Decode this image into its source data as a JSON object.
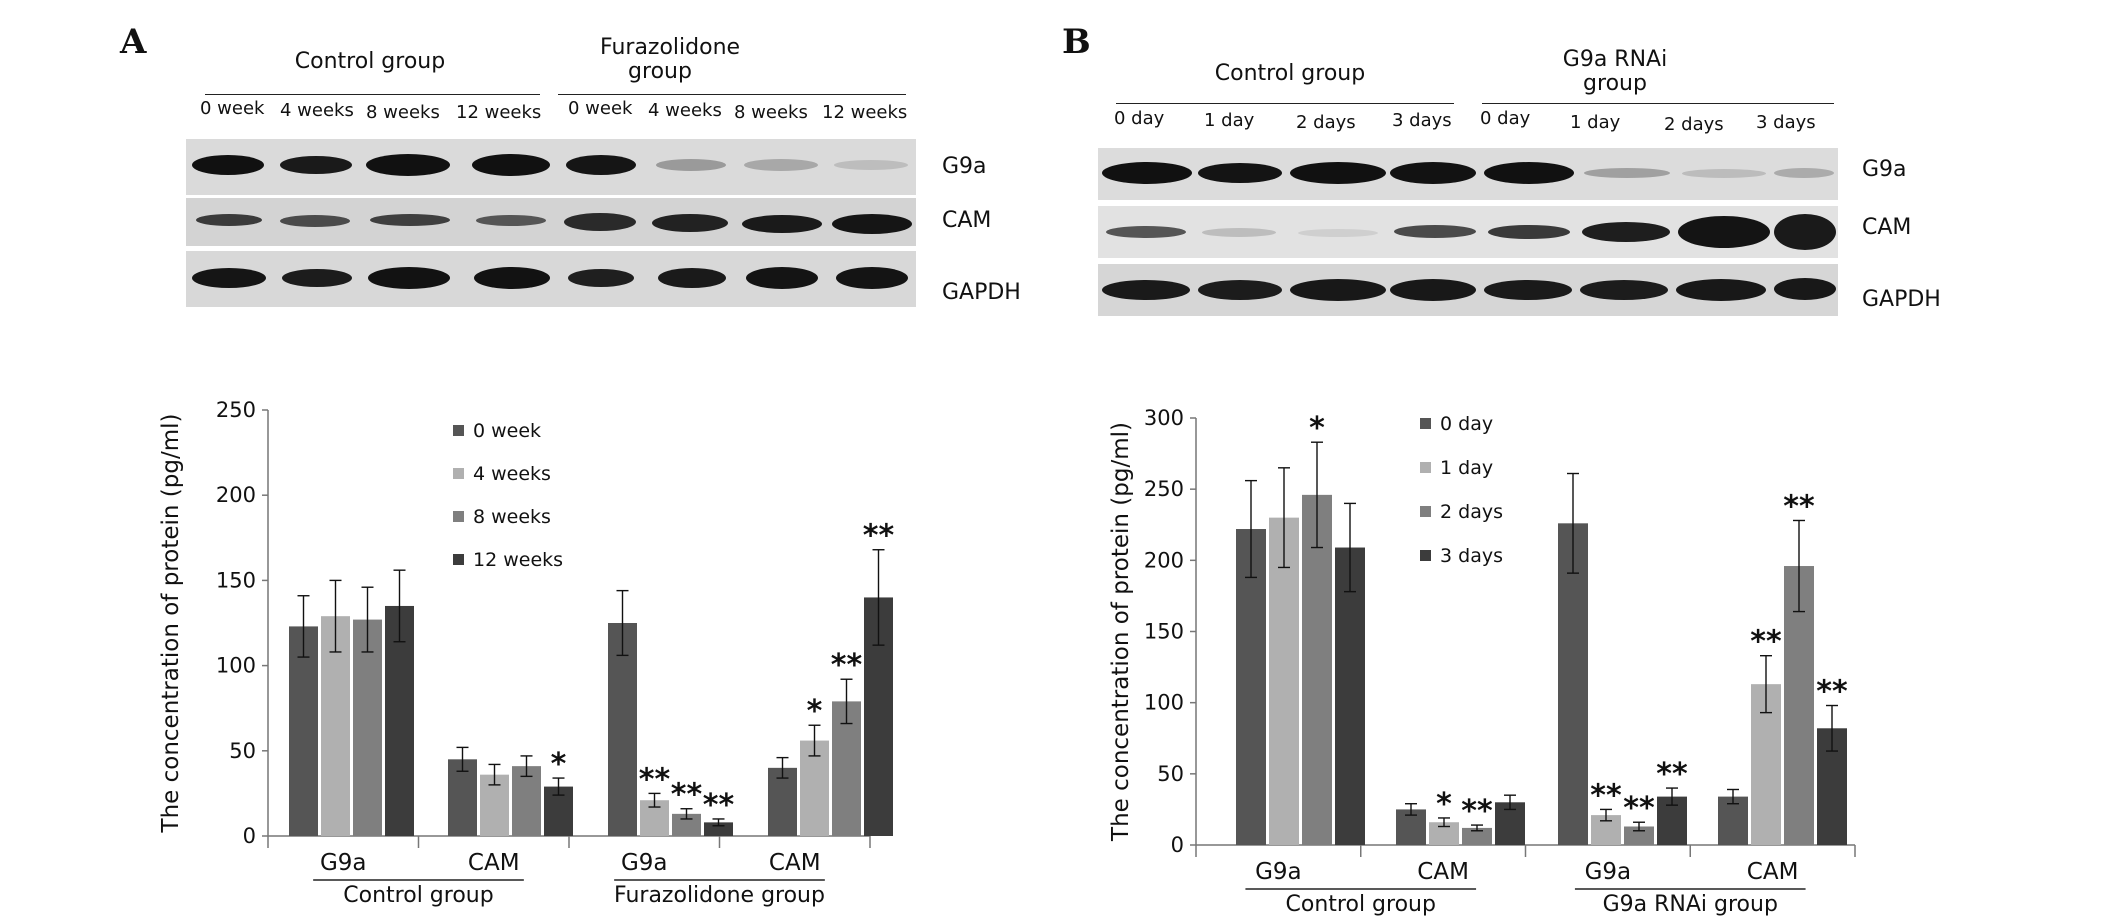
{
  "panels": [
    {
      "letter": "A",
      "blot": {
        "groups": [
          "Control group",
          "Furazolidone group"
        ],
        "lanes": [
          "0 week",
          "4 weeks",
          "8 weeks",
          "12 weeks",
          "0 week",
          "4 weeks",
          "8 weeks",
          "12 weeks"
        ],
        "proteins": [
          "G9a",
          "CAM",
          "GAPDH"
        ]
      }
    },
    {
      "letter": "B",
      "blot": {
        "groups": [
          "Control group",
          "G9a RNAi group"
        ],
        "lanes": [
          "0 day",
          "1 day",
          "2 days",
          "3 days",
          "0 day",
          "1 day",
          "2 days",
          "3 days"
        ],
        "proteins": [
          "G9a",
          "CAM",
          "GAPDH"
        ]
      }
    }
  ],
  "chart_data": [
    {
      "type": "bar",
      "panel": "A",
      "ylabel": "The concentration of protein (pg/ml)",
      "ylim": [
        0,
        250
      ],
      "yticks": [
        0,
        50,
        100,
        150,
        200,
        250
      ],
      "categories": [
        "G9a",
        "CAM",
        "G9a",
        "CAM"
      ],
      "groups": [
        "Control group",
        "Furazolidone group"
      ],
      "legend_position": "top-center",
      "series": [
        {
          "name": "0 week",
          "color": "#555555",
          "values": [
            123,
            45,
            125,
            40
          ],
          "errors": [
            18,
            7,
            19,
            6
          ],
          "sig": [
            "",
            "",
            "",
            ""
          ]
        },
        {
          "name": "4 weeks",
          "color": "#b0b0b0",
          "values": [
            129,
            36,
            21,
            56
          ],
          "errors": [
            21,
            6,
            4,
            9
          ],
          "sig": [
            "",
            "",
            "**",
            "*"
          ]
        },
        {
          "name": "8 weeks",
          "color": "#7f7f7f",
          "values": [
            127,
            41,
            13,
            79
          ],
          "errors": [
            19,
            6,
            3,
            13
          ],
          "sig": [
            "",
            "",
            "**",
            "**"
          ]
        },
        {
          "name": "12 weeks",
          "color": "#3c3c3c",
          "values": [
            135,
            29,
            8,
            140
          ],
          "errors": [
            21,
            5,
            2,
            28
          ],
          "sig": [
            "",
            "*",
            "**",
            "**"
          ]
        }
      ]
    },
    {
      "type": "bar",
      "panel": "B",
      "ylabel": "The concentration of protein (pg/ml)",
      "ylim": [
        0,
        300
      ],
      "yticks": [
        0,
        50,
        100,
        150,
        200,
        250,
        300
      ],
      "categories": [
        "G9a",
        "CAM",
        "G9a",
        "CAM"
      ],
      "groups": [
        "Control group",
        "G9a RNAi group"
      ],
      "legend_position": "top-center",
      "series": [
        {
          "name": "0 day",
          "color": "#555555",
          "values": [
            222,
            25,
            226,
            34
          ],
          "errors": [
            34,
            4,
            35,
            5
          ],
          "sig": [
            "",
            "",
            "",
            ""
          ]
        },
        {
          "name": "1 day",
          "color": "#b0b0b0",
          "values": [
            230,
            16,
            21,
            113
          ],
          "errors": [
            35,
            3,
            4,
            20
          ],
          "sig": [
            "",
            "*",
            "**",
            "**"
          ]
        },
        {
          "name": "2 days",
          "color": "#7f7f7f",
          "values": [
            246,
            12,
            13,
            196
          ],
          "errors": [
            37,
            2,
            3,
            32
          ],
          "sig": [
            "*",
            "**",
            "**",
            "**"
          ]
        },
        {
          "name": "3 days",
          "color": "#3c3c3c",
          "values": [
            209,
            30,
            34,
            82
          ],
          "errors": [
            31,
            5,
            6,
            16
          ],
          "sig": [
            "",
            "",
            "**",
            "**"
          ]
        }
      ]
    }
  ]
}
